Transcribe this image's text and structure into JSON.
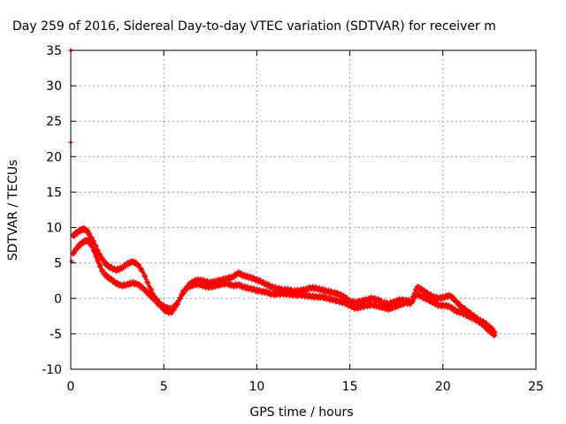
{
  "chart_data": {
    "type": "scatter",
    "title": "Day 259 of 2016, Sidereal Day-to-day VTEC variation (SDTVAR) for receiver m",
    "xlabel": "GPS time / hours",
    "ylabel": "SDTVAR / TECUs",
    "xlim": [
      0,
      25
    ],
    "ylim": [
      -10,
      35
    ],
    "xticks": [
      0,
      5,
      10,
      15,
      20,
      25
    ],
    "yticks": [
      -10,
      -5,
      0,
      5,
      10,
      15,
      20,
      25,
      30,
      35
    ],
    "grid": true,
    "color": "#ff0000",
    "outliers": [
      {
        "x": 0.0,
        "y": 35.0
      },
      {
        "x": 0.0,
        "y": 22.0
      },
      {
        "x": 0.05,
        "y": 5.2
      }
    ],
    "series": [
      {
        "x": [
          0.1,
          0.3,
          0.5,
          0.7,
          0.9,
          1.1,
          1.3,
          1.5,
          1.7,
          1.9,
          2.1,
          2.4,
          2.7,
          3.0,
          3.3,
          3.6,
          3.9,
          4.2,
          4.5,
          4.8,
          5.1,
          5.4,
          5.7,
          6.0,
          6.3,
          6.6,
          6.9,
          7.2,
          7.5,
          7.8,
          8.1,
          8.4,
          8.7,
          9.0,
          9.3,
          9.6,
          9.9,
          10.2,
          10.5,
          10.8,
          11.1,
          11.4,
          11.7,
          12.0,
          12.3,
          12.6,
          12.9,
          13.2,
          13.5,
          13.8,
          14.1,
          14.4,
          14.7,
          15.0,
          15.3,
          15.6,
          15.9,
          16.2,
          16.5,
          16.8,
          17.1,
          17.4,
          17.7,
          18.0,
          18.3,
          18.6,
          18.9,
          19.2,
          19.5,
          19.8,
          20.1,
          20.4,
          20.7,
          21.0,
          21.3,
          21.6,
          21.9,
          22.2,
          22.5,
          22.8
        ],
        "y": [
          8.8,
          9.2,
          9.6,
          9.8,
          9.5,
          8.6,
          7.6,
          6.4,
          5.5,
          4.8,
          4.4,
          4.0,
          4.2,
          4.8,
          5.2,
          4.8,
          3.6,
          1.8,
          0.2,
          -0.8,
          -1.3,
          -1.5,
          -0.8,
          0.6,
          1.8,
          2.4,
          2.6,
          2.4,
          2.2,
          2.4,
          2.6,
          2.8,
          3.0,
          3.6,
          3.2,
          3.0,
          2.7,
          2.4,
          2.0,
          1.6,
          1.4,
          1.2,
          1.2,
          1.0,
          1.1,
          1.2,
          1.5,
          1.4,
          1.2,
          1.0,
          0.8,
          0.6,
          0.2,
          -0.4,
          -0.6,
          -0.4,
          -0.2,
          0.0,
          -0.2,
          -0.6,
          -0.8,
          -0.5,
          -0.2,
          -0.3,
          -0.4,
          1.6,
          1.2,
          0.6,
          0.2,
          0.0,
          0.2,
          0.4,
          -0.4,
          -1.2,
          -1.8,
          -2.4,
          -3.0,
          -3.4,
          -4.0,
          -4.8
        ]
      },
      {
        "x": [
          0.1,
          0.3,
          0.5,
          0.7,
          0.9,
          1.1,
          1.3,
          1.5,
          1.7,
          1.9,
          2.1,
          2.4,
          2.7,
          3.0,
          3.3,
          3.6,
          3.9,
          4.2,
          4.5,
          4.8,
          5.1,
          5.4,
          5.7,
          6.0,
          6.3,
          6.6,
          6.9,
          7.2,
          7.5,
          7.8,
          8.1,
          8.4,
          8.7,
          9.0,
          9.3,
          9.6,
          9.9,
          10.2,
          10.5,
          10.8,
          11.1,
          11.4,
          11.7,
          12.0,
          12.3,
          12.6,
          12.9,
          13.2,
          13.5,
          13.8,
          14.1,
          14.4,
          14.7,
          15.0,
          15.3,
          15.6,
          15.9,
          16.2,
          16.5,
          16.8,
          17.1,
          17.4,
          17.7,
          18.0,
          18.3,
          18.6,
          18.9,
          19.2,
          19.5,
          19.8,
          20.1,
          20.4,
          20.7,
          21.0,
          21.3,
          21.6,
          21.9,
          22.2,
          22.5,
          22.8
        ],
        "y": [
          6.2,
          7.0,
          7.6,
          8.0,
          8.2,
          7.6,
          6.4,
          5.0,
          3.8,
          3.2,
          2.8,
          2.2,
          1.8,
          1.9,
          2.2,
          2.0,
          1.4,
          0.6,
          -0.2,
          -1.0,
          -1.8,
          -2.0,
          -1.0,
          0.8,
          1.6,
          1.9,
          2.0,
          1.7,
          1.6,
          1.8,
          2.0,
          2.1,
          1.8,
          1.9,
          1.6,
          1.4,
          1.2,
          1.0,
          0.9,
          0.6,
          0.6,
          0.7,
          0.6,
          0.5,
          0.5,
          0.4,
          0.3,
          0.2,
          0.2,
          0.0,
          -0.2,
          -0.4,
          -0.6,
          -1.0,
          -1.4,
          -1.2,
          -1.0,
          -0.9,
          -1.1,
          -1.3,
          -1.5,
          -1.2,
          -0.9,
          -0.6,
          -0.7,
          0.6,
          0.2,
          -0.2,
          -0.6,
          -1.0,
          -1.0,
          -1.2,
          -1.8,
          -2.0,
          -2.4,
          -2.8,
          -3.2,
          -3.8,
          -4.6,
          -5.2
        ]
      }
    ]
  }
}
